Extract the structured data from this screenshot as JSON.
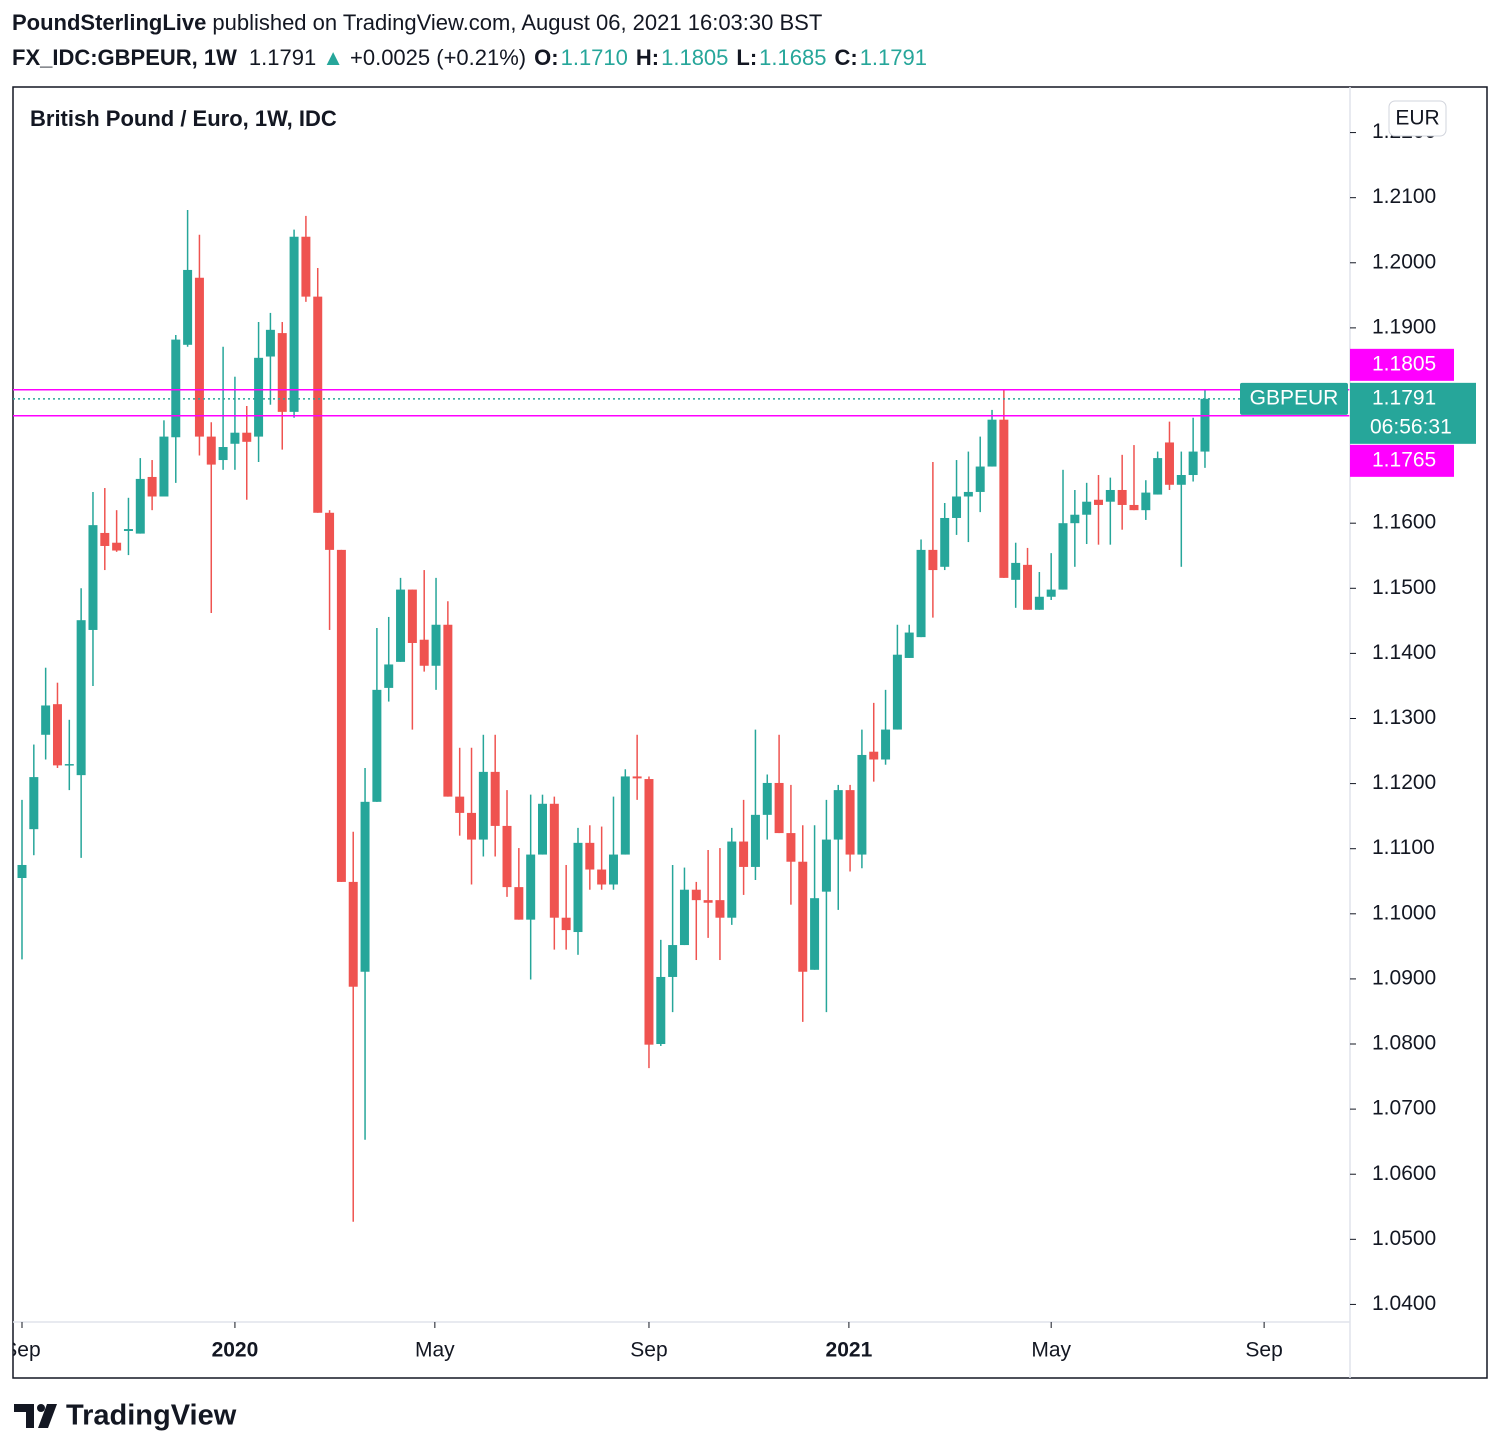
{
  "header": {
    "author": "PoundSterlingLive",
    "published": "published on TradingView.com, August 06, 2021 16:03:30 BST",
    "symbol": "FX_IDC:GBPEUR, 1W",
    "last": "1.1791",
    "arrow": "▲",
    "change": "+0.0025 (+0.21%)",
    "ohlc": [
      {
        "key": "O:",
        "value": "1.1710"
      },
      {
        "key": "H:",
        "value": "1.1805"
      },
      {
        "key": "L:",
        "value": "1.1685"
      },
      {
        "key": "C:",
        "value": "1.1791"
      }
    ]
  },
  "chart_data": {
    "type": "candlestick",
    "title": "British Pound / Euro, 1W, IDC",
    "currency": "EUR",
    "up_color": "#26a69a",
    "down_color": "#ef5350",
    "grid": true,
    "open": [
      1.1055,
      1.113,
      1.1275,
      1.1322,
      1.1228,
      1.1213,
      1.1436,
      1.1585,
      1.157,
      1.1588,
      1.1584,
      1.1671,
      1.1641,
      1.1732,
      1.1874,
      1.1977,
      1.1733,
      1.1697,
      1.1722,
      1.1739,
      1.1733,
      1.1856,
      1.1892,
      1.1771,
      1.204,
      1.1948,
      1.1616,
      1.1559,
      1.1049,
      1.0911,
      1.1172,
      1.1347,
      1.1387,
      1.1498,
      1.1421,
      1.1381,
      1.1444,
      1.118,
      1.1155,
      1.1114,
      1.1218,
      1.1135,
      1.1041,
      1.0991,
      1.1091,
      1.1169,
      1.0994,
      1.0972,
      1.1109,
      1.1068,
      1.1045,
      1.1091,
      1.1211,
      1.1207,
      1.08,
      1.0903,
      1.0952,
      1.1037,
      1.1021,
      1.1021,
      1.0994,
      1.1111,
      1.1072,
      1.1152,
      1.1201,
      1.1124,
      1.108,
      1.0914,
      1.1034,
      1.1114,
      1.119,
      1.1091,
      1.1249,
      1.1237,
      1.1283,
      1.1393,
      1.1425,
      1.1559,
      1.1533,
      1.1608,
      1.1641,
      1.1648,
      1.1687,
      1.1759,
      1.1513,
      1.1536,
      1.1467,
      1.1487,
      1.1498,
      1.16,
      1.1613,
      1.1636,
      1.1633,
      1.1651,
      1.1628,
      1.162,
      1.1644,
      1.1724,
      1.1659,
      1.1674,
      1.171
    ],
    "high": [
      1.1175,
      1.126,
      1.1378,
      1.1355,
      1.1298,
      1.15,
      1.1648,
      1.1654,
      1.162,
      1.1639,
      1.17,
      1.1697,
      1.1758,
      1.1889,
      1.2081,
      1.2043,
      1.1755,
      1.1871,
      1.1825,
      1.178,
      1.1909,
      1.1923,
      1.1909,
      1.2051,
      1.2072,
      1.1992,
      1.162,
      1.1559,
      1.1126,
      1.1224,
      1.1439,
      1.1456,
      1.1516,
      1.1498,
      1.1528,
      1.1516,
      1.148,
      1.1255,
      1.1255,
      1.1275,
      1.1275,
      1.119,
      1.1101,
      1.1183,
      1.1183,
      1.118,
      1.1075,
      1.1132,
      1.1136,
      1.1134,
      1.118,
      1.1222,
      1.1275,
      1.1211,
      1.096,
      1.1075,
      1.1071,
      1.1049,
      1.1098,
      1.1101,
      1.1132,
      1.1175,
      1.1283,
      1.1214,
      1.1275,
      1.1198,
      1.1136,
      1.1136,
      1.1175,
      1.1198,
      1.1198,
      1.1283,
      1.1324,
      1.1344,
      1.1444,
      1.1444,
      1.1575,
      1.1694,
      1.1631,
      1.1697,
      1.171,
      1.1733,
      1.1774,
      1.1805,
      1.157,
      1.1562,
      1.1525,
      1.1554,
      1.1682,
      1.1651,
      1.1662,
      1.1674,
      1.167,
      1.1705,
      1.172,
      1.1666,
      1.171,
      1.1756,
      1.171,
      1.1762,
      1.1805
    ],
    "low": [
      1.093,
      1.109,
      1.1237,
      1.1224,
      1.119,
      1.1086,
      1.135,
      1.1528,
      1.1556,
      1.1551,
      1.1584,
      1.162,
      1.1641,
      1.1662,
      1.1871,
      1.1704,
      1.1462,
      1.1682,
      1.1682,
      1.1636,
      1.1694,
      1.1782,
      1.1713,
      1.1762,
      1.194,
      1.1616,
      1.1436,
      1.1049,
      1.0527,
      1.0653,
      1.1172,
      1.1326,
      1.1387,
      1.1283,
      1.1372,
      1.1344,
      1.118,
      1.112,
      1.1045,
      1.1088,
      1.1088,
      1.1026,
      1.0991,
      1.0899,
      1.1091,
      1.0945,
      1.0945,
      1.0937,
      1.1037,
      1.1037,
      1.1037,
      1.1091,
      1.1175,
      1.0763,
      1.0797,
      1.0849,
      1.0952,
      1.0929,
      1.0963,
      1.0929,
      1.0983,
      1.1029,
      1.1052,
      1.1114,
      1.1124,
      1.1014,
      1.0834,
      1.0914,
      1.0849,
      1.1006,
      1.1065,
      1.107,
      1.1203,
      1.1229,
      1.1283,
      1.1393,
      1.1425,
      1.1455,
      1.1528,
      1.1582,
      1.1571,
      1.1617,
      1.1687,
      1.1516,
      1.147,
      1.1467,
      1.1467,
      1.1482,
      1.1498,
      1.1533,
      1.1568,
      1.1567,
      1.1567,
      1.159,
      1.162,
      1.1605,
      1.1644,
      1.1651,
      1.1533,
      1.1664,
      1.1685
    ],
    "close": [
      1.1075,
      1.121,
      1.132,
      1.1228,
      1.123,
      1.1451,
      1.1597,
      1.1565,
      1.1558,
      1.1591,
      1.1668,
      1.1641,
      1.1733,
      1.1882,
      1.1989,
      1.1733,
      1.169,
      1.1717,
      1.1739,
      1.1725,
      1.1854,
      1.1897,
      1.1771,
      1.204,
      1.1948,
      1.1616,
      1.1559,
      1.1049,
      1.0888,
      1.1172,
      1.1344,
      1.1383,
      1.1498,
      1.1416,
      1.1381,
      1.1444,
      1.118,
      1.1155,
      1.1114,
      1.1218,
      1.1135,
      1.1041,
      1.0991,
      1.1091,
      1.1169,
      1.0994,
      1.0975,
      1.1109,
      1.1068,
      1.1045,
      1.1091,
      1.1211,
      1.1208,
      1.0799,
      1.0903,
      1.0952,
      1.1037,
      1.1021,
      1.1017,
      1.0994,
      1.1111,
      1.1072,
      1.1152,
      1.1201,
      1.1124,
      1.108,
      1.0911,
      1.1024,
      1.1114,
      1.119,
      1.1091,
      1.1244,
      1.1237,
      1.1283,
      1.1398,
      1.1432,
      1.1559,
      1.1528,
      1.1608,
      1.1641,
      1.1648,
      1.1687,
      1.1759,
      1.1516,
      1.1539,
      1.1467,
      1.1487,
      1.1498,
      1.16,
      1.1613,
      1.1633,
      1.1628,
      1.1651,
      1.1628,
      1.162,
      1.1647,
      1.17,
      1.1659,
      1.1674,
      1.171,
      1.1791
    ],
    "xlim": [
      -0.76,
      112.26
    ],
    "xticks": [
      {
        "value": 0,
        "label": "Sep"
      },
      {
        "value": 18,
        "label": "2020",
        "bold": true
      },
      {
        "value": 34.9,
        "label": "May"
      },
      {
        "value": 53,
        "label": "Sep"
      },
      {
        "value": 69.9,
        "label": "2021",
        "bold": true
      },
      {
        "value": 87,
        "label": "May"
      },
      {
        "value": 105,
        "label": "Sep"
      }
    ],
    "ylim": [
      1.0373,
      1.227
    ],
    "yticks": [
      {
        "value": 1.04,
        "label": "1.0400"
      },
      {
        "value": 1.05,
        "label": "1.0500"
      },
      {
        "value": 1.06,
        "label": "1.0600"
      },
      {
        "value": 1.07,
        "label": "1.0700"
      },
      {
        "value": 1.08,
        "label": "1.0800"
      },
      {
        "value": 1.09,
        "label": "1.0900"
      },
      {
        "value": 1.1,
        "label": "1.1000"
      },
      {
        "value": 1.11,
        "label": "1.1100"
      },
      {
        "value": 1.12,
        "label": "1.1200"
      },
      {
        "value": 1.13,
        "label": "1.1300"
      },
      {
        "value": 1.14,
        "label": "1.1400"
      },
      {
        "value": 1.15,
        "label": "1.1500"
      },
      {
        "value": 1.16,
        "label": "1.1600"
      },
      {
        "value": 1.17,
        "label": "1.1700"
      },
      {
        "value": 1.18,
        "label": "1.1800"
      },
      {
        "value": 1.19,
        "label": "1.1900"
      },
      {
        "value": 1.2,
        "label": "1.2000"
      },
      {
        "value": 1.21,
        "label": "1.2100"
      },
      {
        "value": 1.22,
        "label": "1.2200"
      }
    ],
    "levels": [
      {
        "value": 1.1805,
        "color": "#ff00ff"
      },
      {
        "value": 1.1765,
        "color": "#ff00ff"
      }
    ],
    "last_price": {
      "value": 1.1791,
      "name": "GBPEUR",
      "countdown": "06:56:31",
      "color": "#26a69a"
    }
  },
  "footer": {
    "brand": "TradingView"
  }
}
